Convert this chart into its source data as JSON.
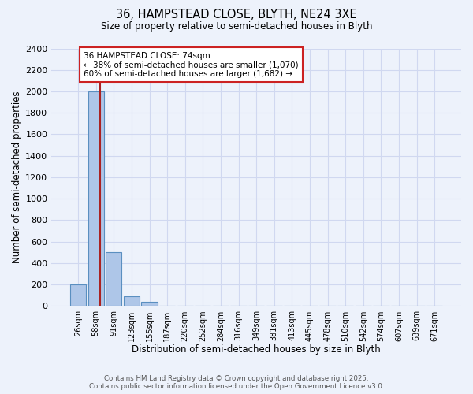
{
  "title_line1": "36, HAMPSTEAD CLOSE, BLYTH, NE24 3XE",
  "title_line2": "Size of property relative to semi-detached houses in Blyth",
  "xlabel": "Distribution of semi-detached houses by size in Blyth",
  "ylabel": "Number of semi-detached properties",
  "categories": [
    "26sqm",
    "58sqm",
    "91sqm",
    "123sqm",
    "155sqm",
    "187sqm",
    "220sqm",
    "252sqm",
    "284sqm",
    "316sqm",
    "349sqm",
    "381sqm",
    "413sqm",
    "445sqm",
    "478sqm",
    "510sqm",
    "542sqm",
    "574sqm",
    "607sqm",
    "639sqm",
    "671sqm"
  ],
  "values": [
    200,
    2000,
    500,
    90,
    40,
    0,
    0,
    0,
    0,
    0,
    0,
    0,
    0,
    0,
    0,
    0,
    0,
    0,
    0,
    0,
    0
  ],
  "bar_color": "#aec6e8",
  "bar_edgecolor": "#5a8fc0",
  "background_color": "#edf2fb",
  "grid_color": "#d0d8f0",
  "property_line_color": "#aa2222",
  "property_line_x": 1.25,
  "annotation_text": "36 HAMPSTEAD CLOSE: 74sqm\n← 38% of semi-detached houses are smaller (1,070)\n60% of semi-detached houses are larger (1,682) →",
  "annotation_box_facecolor": "#ffffff",
  "annotation_box_edgecolor": "#cc2222",
  "ylim": [
    0,
    2400
  ],
  "yticks": [
    0,
    200,
    400,
    600,
    800,
    1000,
    1200,
    1400,
    1600,
    1800,
    2000,
    2200,
    2400
  ],
  "footer_text": "Contains HM Land Registry data © Crown copyright and database right 2025.\nContains public sector information licensed under the Open Government Licence v3.0.",
  "figsize": [
    6.0,
    5.0
  ],
  "dpi": 100
}
